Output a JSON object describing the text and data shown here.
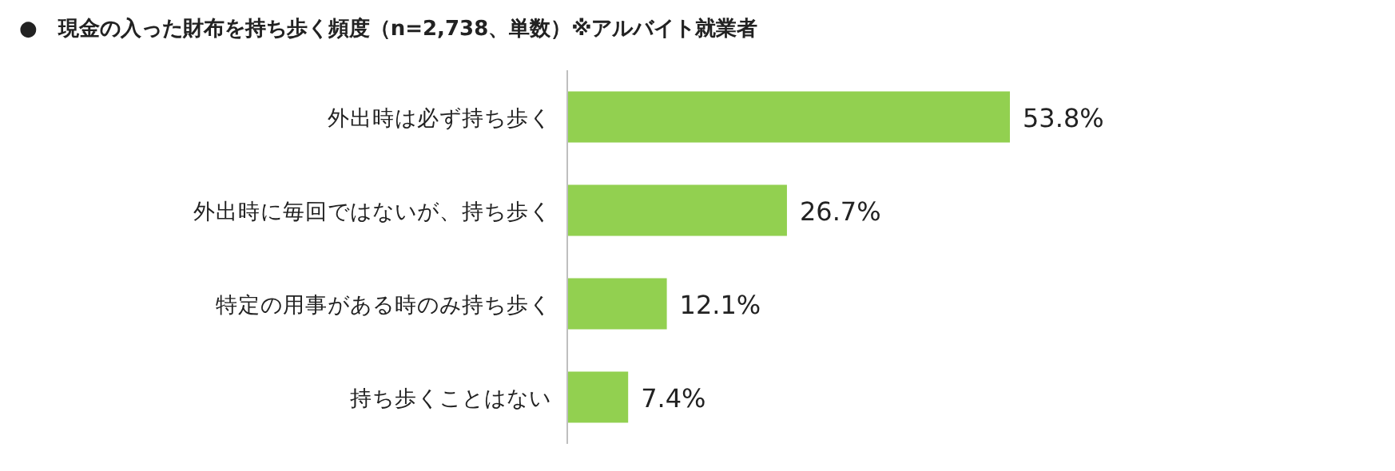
{
  "chart_data": {
    "type": "bar",
    "orientation": "horizontal",
    "title": "●　現金の入った財布を持ち歩く頻度（n=2,738、単数）※アルバイト就業者",
    "categories": [
      "外出時は必ず持ち歩く",
      "外出時に毎回ではないが、持ち歩く",
      "特定の用事がある時のみ持ち歩く",
      "持ち歩くことはない"
    ],
    "values": [
      53.8,
      26.7,
      12.1,
      7.4
    ],
    "value_labels": [
      "53.8%",
      "26.7%",
      "12.1%",
      "7.4%"
    ],
    "color": "#92d050"
  }
}
